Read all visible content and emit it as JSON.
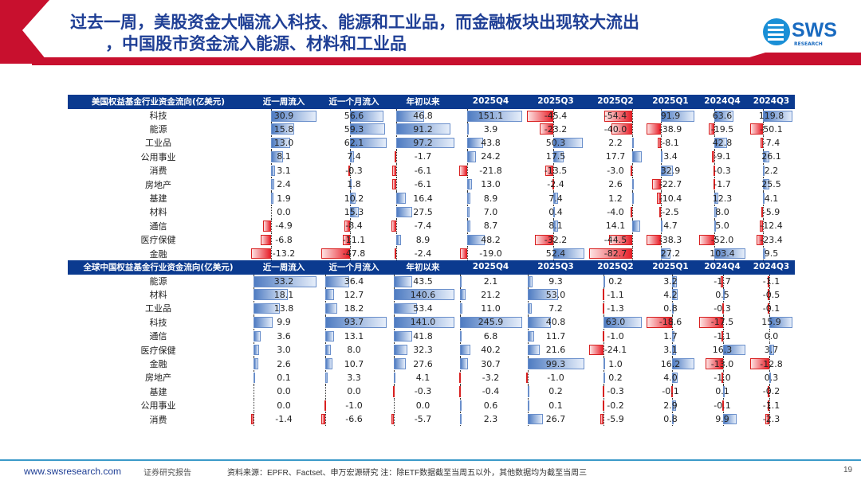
{
  "header": {
    "title_line1": "过去一周，美股资金大幅流入科技、能源和工业品，而金融板块出现较大流出",
    "title_line2": "，中国股市资金流入能源、材料和工业品",
    "logo_text": "SWS",
    "logo_sub": "RESEARCH"
  },
  "colors": {
    "accent_red": "#c8102e",
    "header_blue": "#0b3a8f",
    "positive_bar": "#4f7cc2",
    "negative_bar": "#e8202a"
  },
  "tables": [
    {
      "title": "美国权益基金行业资金流向(亿美元)",
      "headers": [
        "近一周流入",
        "近一个月流入",
        "年初以来",
        "2025Q4",
        "2025Q3",
        "2025Q2",
        "2025Q1",
        "2024Q4",
        "2024Q3"
      ],
      "rows": [
        {
          "label": "科技",
          "values": [
            30.9,
            56.6,
            46.8,
            151.1,
            -45.4,
            -54.4,
            91.9,
            63.6,
            119.8
          ]
        },
        {
          "label": "能源",
          "values": [
            15.8,
            59.3,
            91.2,
            3.9,
            -23.2,
            -40.0,
            -38.9,
            -19.5,
            -50.1
          ]
        },
        {
          "label": "工业品",
          "values": [
            13.0,
            62.1,
            97.2,
            43.8,
            50.3,
            2.2,
            -8.1,
            42.8,
            -7.4
          ]
        },
        {
          "label": "公用事业",
          "values": [
            8.1,
            7.4,
            -1.7,
            24.2,
            17.5,
            17.7,
            3.4,
            -9.1,
            26.1
          ]
        },
        {
          "label": "消费",
          "values": [
            3.1,
            -0.3,
            -6.1,
            -21.8,
            -13.5,
            -3.0,
            32.9,
            -0.3,
            2.2
          ]
        },
        {
          "label": "房地产",
          "values": [
            2.4,
            1.8,
            -6.1,
            13.0,
            -2.4,
            2.6,
            -22.7,
            -1.7,
            25.5
          ]
        },
        {
          "label": "基建",
          "values": [
            1.9,
            10.2,
            16.4,
            8.9,
            7.4,
            1.2,
            -10.4,
            12.3,
            4.1
          ]
        },
        {
          "label": "材料",
          "values": [
            0.0,
            15.3,
            27.5,
            7.0,
            0.4,
            -4.0,
            -2.5,
            8.0,
            -5.9
          ]
        },
        {
          "label": "通信",
          "values": [
            -4.9,
            -8.4,
            -7.4,
            8.7,
            8.1,
            14.1,
            4.7,
            5.0,
            -12.4
          ]
        },
        {
          "label": "医疗保健",
          "values": [
            -6.8,
            -11.1,
            8.9,
            48.2,
            -32.2,
            -44.5,
            -38.3,
            -52.0,
            -23.4
          ]
        },
        {
          "label": "金融",
          "values": [
            -13.2,
            -47.8,
            -2.4,
            -19.0,
            52.4,
            -82.7,
            27.2,
            103.4,
            9.5
          ]
        }
      ]
    },
    {
      "title": "全球中国权益基金行业资金流向(亿美元)",
      "headers": [
        "近一周流入",
        "近一个月流入",
        "年初以来",
        "2025Q4",
        "2025Q3",
        "2025Q2",
        "2025Q1",
        "2024Q4",
        "2024Q3"
      ],
      "rows": [
        {
          "label": "能源",
          "values": [
            33.2,
            36.4,
            43.5,
            2.1,
            9.3,
            0.2,
            3.2,
            -1.7,
            -1.1
          ]
        },
        {
          "label": "材料",
          "values": [
            18.1,
            12.7,
            140.6,
            21.2,
            53.0,
            -1.1,
            4.2,
            0.5,
            -0.5
          ]
        },
        {
          "label": "工业品",
          "values": [
            13.8,
            18.2,
            53.4,
            11.0,
            7.2,
            -1.3,
            0.8,
            -0.3,
            -0.1
          ]
        },
        {
          "label": "科技",
          "values": [
            9.9,
            93.7,
            141.0,
            245.9,
            40.8,
            63.0,
            -18.6,
            -17.5,
            15.9
          ]
        },
        {
          "label": "通信",
          "values": [
            3.6,
            13.1,
            41.8,
            6.8,
            11.7,
            -1.0,
            1.7,
            -1.1,
            0.0
          ]
        },
        {
          "label": "医疗保健",
          "values": [
            3.0,
            8.0,
            32.3,
            40.2,
            21.6,
            -24.1,
            3.1,
            16.3,
            3.7
          ]
        },
        {
          "label": "金融",
          "values": [
            2.6,
            10.7,
            27.6,
            30.7,
            99.3,
            1.0,
            16.2,
            -13.0,
            -12.8
          ]
        },
        {
          "label": "房地产",
          "values": [
            0.1,
            3.3,
            4.1,
            -3.2,
            -1.0,
            0.2,
            4.0,
            -1.0,
            0.3
          ]
        },
        {
          "label": "基建",
          "values": [
            0.0,
            0.0,
            -0.3,
            -0.4,
            0.2,
            -0.3,
            -0.1,
            0.1,
            -0.2
          ]
        },
        {
          "label": "公用事业",
          "values": [
            0.0,
            -1.0,
            0.0,
            0.6,
            0.1,
            -0.2,
            2.9,
            -0.1,
            -1.1
          ]
        },
        {
          "label": "消费",
          "values": [
            -1.4,
            -6.6,
            -5.7,
            2.3,
            26.7,
            -5.9,
            0.8,
            9.9,
            -2.3
          ]
        }
      ]
    }
  ],
  "footer": {
    "website": "www.swsresearch.com",
    "report_type": "证券研究报告",
    "source_note": "资料来源：EPFR、Factset、申万宏源研究 注：除ETF数据截至当周五以外，其他数据均为截至当周三",
    "page_number": "19"
  }
}
